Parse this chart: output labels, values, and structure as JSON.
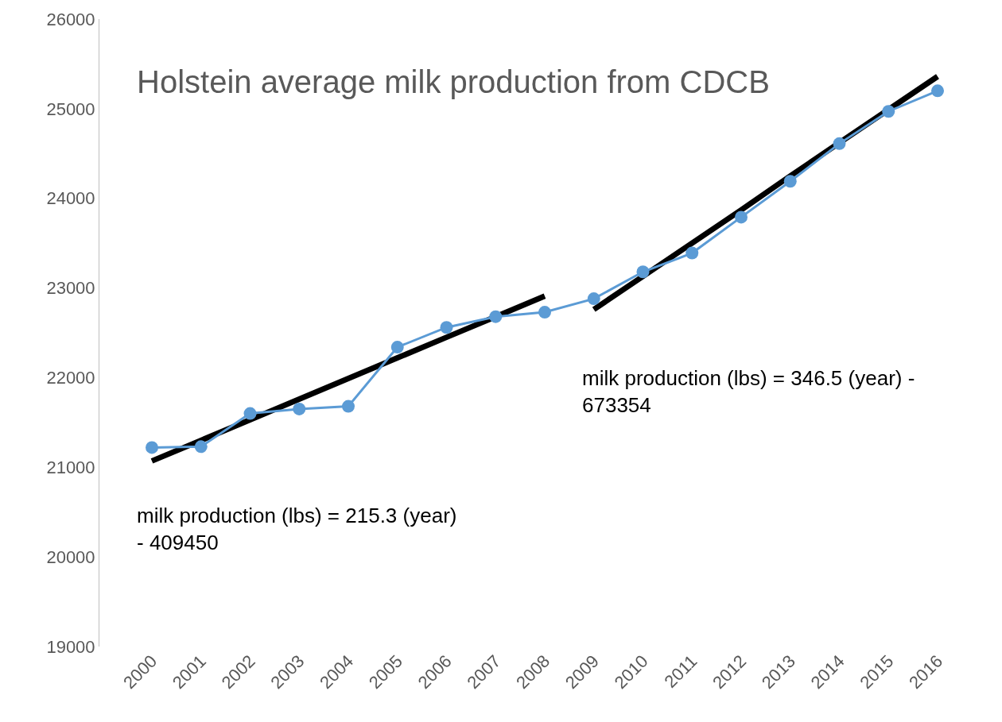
{
  "chart_data": {
    "type": "line",
    "title": "Holstein average milk production from CDCB",
    "categories": [
      "2000",
      "2001",
      "2002",
      "2003",
      "2004",
      "2005",
      "2006",
      "2007",
      "2008",
      "2009",
      "2010",
      "2011",
      "2012",
      "2013",
      "2014",
      "2015",
      "2016"
    ],
    "series": [
      {
        "color": "#5b9bd5",
        "marker": "circle",
        "values": [
          21220,
          21230,
          21600,
          21650,
          21680,
          22340,
          22560,
          22680,
          22730,
          22880,
          23180,
          23390,
          23790,
          24190,
          24610,
          24970,
          25200
        ]
      },
      {
        "type": "line",
        "color": "#000000",
        "marker": "none",
        "values": [
          21070,
          21300,
          21530,
          21760,
          21990,
          22220,
          22450,
          22680,
          22910,
          null,
          null,
          null,
          null,
          null,
          null,
          null,
          null
        ]
      },
      {
        "type": "line",
        "color": "#000000",
        "marker": "none",
        "values": [
          null,
          null,
          null,
          null,
          null,
          null,
          null,
          null,
          null,
          22760,
          23130,
          23500,
          23870,
          24250,
          24620,
          24990,
          25360
        ]
      }
    ],
    "ylim": [
      19000,
      26000
    ],
    "yticks": [
      19000,
      20000,
      21000,
      22000,
      23000,
      24000,
      25000,
      26000
    ],
    "annotations": [
      "milk production (lbs) = 215.3 (year) - 409450",
      "milk production (lbs) = 346.5 (year) - 673354"
    ]
  }
}
